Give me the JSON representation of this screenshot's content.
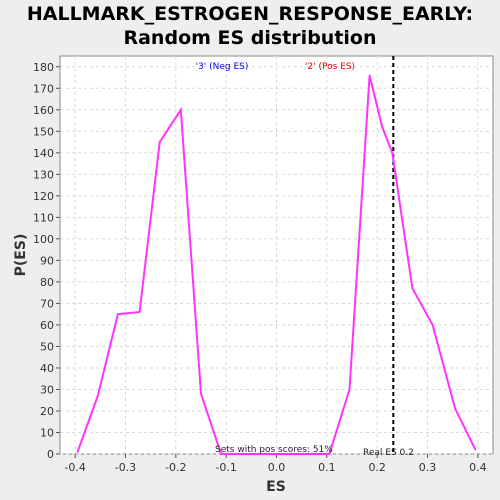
{
  "title_line1": "HALLMARK_ESTROGEN_RESPONSE_EARLY:",
  "title_line2": "Random ES distribution",
  "colors": {
    "line": "#ff33ff",
    "neg": "#0000ee",
    "pos": "#ee0000",
    "real_es_line": "#000000",
    "plot_bg": "#ffffff",
    "grid": "#d8d8d8"
  },
  "chart_data": {
    "type": "line",
    "title": "HALLMARK_ESTROGEN_RESPONSE_EARLY: Random ES distribution",
    "xlabel": "ES",
    "ylabel": "P(ES)",
    "xlim": [
      -0.43,
      0.43
    ],
    "ylim": [
      0,
      185
    ],
    "xticks": [
      "-0.4",
      "-0.3",
      "-0.2",
      "-0.1",
      "0.0",
      "0.1",
      "0.2",
      "0.3",
      "0.4"
    ],
    "xtick_values": [
      -0.4,
      -0.3,
      -0.2,
      -0.1,
      0.0,
      0.1,
      0.2,
      0.3,
      0.4
    ],
    "yticks": [
      "0",
      "10",
      "20",
      "30",
      "40",
      "50",
      "60",
      "70",
      "80",
      "90",
      "100",
      "110",
      "120",
      "130",
      "140",
      "150",
      "160",
      "170",
      "180"
    ],
    "ytick_values": [
      0,
      10,
      20,
      30,
      40,
      50,
      60,
      70,
      80,
      90,
      100,
      110,
      120,
      130,
      140,
      150,
      160,
      170,
      180
    ],
    "grid": true,
    "series": [
      {
        "x": [
          -0.395,
          -0.355,
          -0.315,
          -0.272,
          -0.232,
          -0.19,
          -0.15,
          -0.11,
          -0.07,
          -0.03,
          0.01,
          0.05,
          0.09,
          0.105,
          0.145,
          0.185,
          0.21,
          0.23,
          0.27,
          0.31,
          0.355,
          0.395
        ],
        "y": [
          1,
          27,
          65,
          66,
          145,
          160,
          28,
          0,
          0,
          0,
          0,
          0,
          0,
          0,
          30,
          176,
          152,
          140,
          77,
          60,
          21,
          2
        ]
      }
    ],
    "annotations": {
      "neg_label": "'3' (Neg ES)",
      "pos_label": "'2' (Pos ES)",
      "sets_with_pos": "Sets with pos scores: 51%",
      "real_es_text": "Real ES 0.2",
      "real_es_value": 0.232
    }
  }
}
